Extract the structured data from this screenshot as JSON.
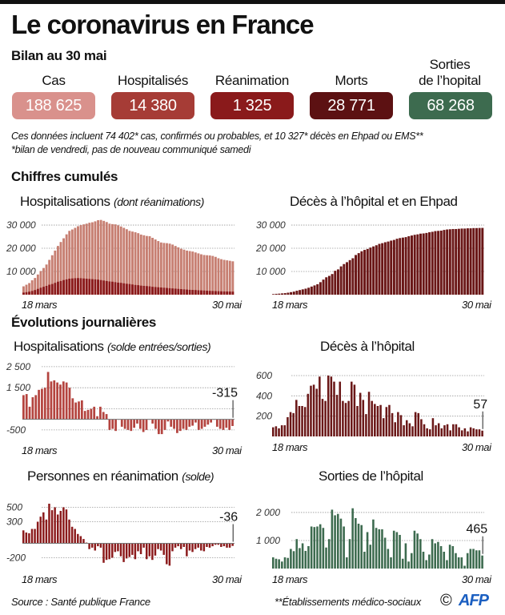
{
  "header": {
    "title": "Le coronavirus en France",
    "subtitle": "Bilan au 30 mai"
  },
  "kpis": [
    {
      "label": "Cas",
      "value": "188 625",
      "color": "#d9918c"
    },
    {
      "label": "Hospitalisés",
      "value": "14 380",
      "color": "#a63c36"
    },
    {
      "label": "Réanimation",
      "value": "1 325",
      "color": "#8a1a1b"
    },
    {
      "label": "Morts",
      "value": "28 771",
      "color": "#5c1112"
    },
    {
      "label_line1": "Sorties",
      "label": "de l’hopital",
      "value": "68 268",
      "color": "#3d6b4f"
    }
  ],
  "notes": [
    "Ces données incluent 74 402* cas, confirmés ou probables, et 10 327* décès en Ehpad ou EMS**",
    "*bilan de vendredi, pas de nouveau communiqué samedi"
  ],
  "sections": {
    "cumulative": "Chiffres cumulés",
    "daily": "Évolutions journalières"
  },
  "footer": {
    "source": "Source : Santé publique France",
    "footnote": "**Établissements médico-sociaux",
    "copyright": "©",
    "logo": "AFP"
  },
  "chart_data": [
    {
      "id": "hosp_cum",
      "type": "bar",
      "title": "Hospitalisations",
      "subtitle": "(dont réanimations)",
      "x_start": "18 mars",
      "x_end": "30 mai",
      "ylim": [
        0,
        34500
      ],
      "yticks": [
        10000,
        20000,
        30000
      ],
      "ytick_labels": [
        "10 000",
        "20 000",
        "30 000"
      ],
      "series": [
        {
          "name": "Hospitalisations",
          "color": "#c77f72",
          "values": [
            3600,
            4300,
            5000,
            6200,
            7200,
            8700,
            10200,
            11500,
            13000,
            15000,
            17000,
            19000,
            21000,
            22700,
            24300,
            26000,
            27500,
            28100,
            28800,
            29500,
            30000,
            30300,
            30600,
            31000,
            31200,
            31600,
            32100,
            32200,
            31800,
            31300,
            30600,
            30400,
            30300,
            29900,
            29400,
            28800,
            28200,
            27500,
            27200,
            26900,
            26500,
            25900,
            25600,
            25300,
            25200,
            24500,
            23800,
            23100,
            22500,
            22300,
            22200,
            22000,
            21600,
            21000,
            20400,
            19800,
            19400,
            19000,
            18800,
            18600,
            18200,
            17800,
            17400,
            17100,
            17000,
            16900,
            16700,
            16300,
            15700,
            15300,
            15000,
            14800,
            14600,
            14380
          ]
        },
        {
          "name": "Réanimations",
          "color": "#8b1a1b",
          "values": [
            900,
            1100,
            1300,
            1600,
            2000,
            2500,
            3000,
            3400,
            3800,
            4300,
            4600,
            5100,
            5600,
            5900,
            6300,
            6600,
            6900,
            7000,
            7100,
            7150,
            7100,
            7000,
            6900,
            6800,
            6700,
            6600,
            6500,
            6300,
            6100,
            5900,
            5700,
            5600,
            5400,
            5200,
            5100,
            4900,
            4700,
            4600,
            4400,
            4200,
            4100,
            3900,
            3800,
            3700,
            3600,
            3400,
            3300,
            3200,
            3100,
            3000,
            2900,
            2800,
            2700,
            2600,
            2500,
            2400,
            2300,
            2200,
            2100,
            2050,
            2000,
            1900,
            1850,
            1800,
            1700,
            1650,
            1600,
            1550,
            1500,
            1450,
            1400,
            1380,
            1350,
            1325
          ]
        }
      ]
    },
    {
      "id": "deaths_cum",
      "type": "bar",
      "title": "Décès à l’hôpital et en Ehpad",
      "x_start": "18 mars",
      "x_end": "30 mai",
      "ylim": [
        0,
        34500
      ],
      "yticks": [
        10000,
        20000,
        30000
      ],
      "ytick_labels": [
        "10 000",
        "20 000",
        "30 000"
      ],
      "series": [
        {
          "name": "Décès",
          "color": "#6a1717",
          "values": [
            250,
            370,
            450,
            560,
            670,
            860,
            1100,
            1330,
            1700,
            2000,
            2300,
            2600,
            3000,
            3500,
            4000,
            4500,
            5400,
            6500,
            7500,
            8100,
            8900,
            10300,
            10900,
            12200,
            13200,
            14000,
            14900,
            15700,
            17100,
            17900,
            18700,
            19300,
            19700,
            20300,
            20800,
            21300,
            21900,
            22200,
            22600,
            22900,
            23300,
            23600,
            24100,
            24400,
            24600,
            24800,
            25200,
            25500,
            25800,
            26000,
            26300,
            26400,
            26600,
            26900,
            27100,
            27400,
            27500,
            27600,
            27900,
            28100,
            28200,
            28300,
            28300,
            28400,
            28500,
            28500,
            28600,
            28600,
            28700,
            28700,
            28750,
            28771
          ]
        }
      ]
    },
    {
      "id": "hosp_daily",
      "type": "bar",
      "title": "Hospitalisations",
      "subtitle": "(solde entrées/sorties)",
      "x_start": "18 mars",
      "x_end": "30 mai",
      "ylim": [
        -1000,
        2800
      ],
      "yticks": [
        -500,
        1500,
        2500
      ],
      "ytick_labels": [
        "-500",
        "1 500",
        "2 500"
      ],
      "grid": [
        -500,
        500,
        1500,
        2500
      ],
      "annotation": "-315",
      "series": [
        {
          "name": "Solde",
          "color": "#b4443f",
          "values": [
            1150,
            1200,
            600,
            1050,
            1150,
            1400,
            1450,
            1500,
            2250,
            1800,
            1850,
            1750,
            1650,
            1800,
            1750,
            1500,
            1000,
            800,
            850,
            900,
            400,
            450,
            500,
            600,
            150,
            600,
            350,
            250,
            -500,
            -450,
            -550,
            0,
            -350,
            -450,
            -500,
            -550,
            -400,
            -200,
            -450,
            -600,
            -500,
            0,
            -200,
            -450,
            -700,
            -700,
            -500,
            -100,
            -350,
            -450,
            -650,
            -550,
            -450,
            -500,
            -350,
            -300,
            -150,
            -500,
            -450,
            -350,
            -250,
            -150,
            0,
            -350,
            -450,
            -500,
            -400,
            -500,
            -315
          ]
        }
      ]
    },
    {
      "id": "deaths_daily",
      "type": "bar",
      "title": "Décès à l’hôpital",
      "x_start": "18 mars",
      "x_end": "30 mai",
      "ylim": [
        0,
        750
      ],
      "yticks": [
        200,
        400,
        600
      ],
      "ytick_labels": [
        "200",
        "400",
        "600"
      ],
      "annotation": "57",
      "series": [
        {
          "name": "Décès",
          "color": "#6a1717",
          "values": [
            90,
            100,
            80,
            110,
            110,
            190,
            240,
            230,
            360,
            300,
            300,
            290,
            420,
            500,
            510,
            470,
            590,
            370,
            350,
            600,
            590,
            540,
            410,
            540,
            350,
            330,
            350,
            540,
            510,
            300,
            430,
            360,
            220,
            440,
            350,
            320,
            300,
            310,
            180,
            290,
            310,
            230,
            140,
            240,
            210,
            110,
            160,
            130,
            100,
            240,
            230,
            170,
            120,
            80,
            70,
            180,
            110,
            130,
            80,
            110,
            120,
            60,
            120,
            120,
            90,
            60,
            80,
            50,
            90,
            80,
            70,
            70,
            57
          ]
        }
      ]
    },
    {
      "id": "icu_daily",
      "type": "bar",
      "title": "Personnes en réanimation",
      "subtitle": "(solde)",
      "x_start": "18 mars",
      "x_end": "30 mai",
      "ylim": [
        -350,
        650
      ],
      "yticks": [
        -200,
        300,
        500
      ],
      "ytick_labels": [
        "-200",
        "300",
        "500"
      ],
      "annotation": "-36",
      "series": [
        {
          "name": "Solde",
          "color": "#8b1a1b",
          "values": [
            180,
            150,
            140,
            200,
            200,
            300,
            370,
            430,
            330,
            550,
            460,
            500,
            400,
            450,
            500,
            470,
            330,
            230,
            200,
            130,
            100,
            60,
            10,
            -80,
            -60,
            -100,
            -40,
            -60,
            -270,
            -230,
            -220,
            -200,
            -120,
            -110,
            -180,
            -260,
            -210,
            -190,
            -160,
            -220,
            -110,
            -150,
            -60,
            -220,
            -180,
            -230,
            -170,
            -80,
            -100,
            -160,
            -290,
            -310,
            -110,
            -60,
            -40,
            -80,
            -50,
            -180,
            -100,
            -120,
            -80,
            -60,
            -100,
            -110,
            -50,
            -60,
            -40,
            -20,
            -20,
            -50,
            -40,
            -60,
            -60,
            -36
          ]
        }
      ]
    },
    {
      "id": "discharges_daily",
      "type": "bar",
      "title": "Sorties de l’hôpital",
      "x_start": "18 mars",
      "x_end": "30 mai",
      "ylim": [
        0,
        2570
      ],
      "yticks": [
        1000,
        2000
      ],
      "ytick_labels": [
        "1 000",
        "2 000"
      ],
      "annotation": "465",
      "series": [
        {
          "name": "Sorties",
          "color": "#3d6b4f",
          "values": [
            400,
            350,
            330,
            250,
            400,
            380,
            700,
            620,
            1050,
            730,
            900,
            630,
            800,
            1500,
            1480,
            1500,
            1580,
            1450,
            750,
            1050,
            2100,
            1900,
            1950,
            1780,
            1500,
            400,
            1050,
            2150,
            1800,
            1600,
            1550,
            600,
            1300,
            850,
            1750,
            1450,
            1400,
            1400,
            1100,
            700,
            400,
            1350,
            1300,
            1200,
            350,
            900,
            250,
            550,
            1350,
            1250,
            1050,
            600,
            300,
            500,
            1050,
            900,
            950,
            800,
            600,
            300,
            850,
            800,
            550,
            400,
            400,
            100,
            550,
            700,
            700,
            650,
            650,
            465
          ]
        }
      ]
    }
  ]
}
